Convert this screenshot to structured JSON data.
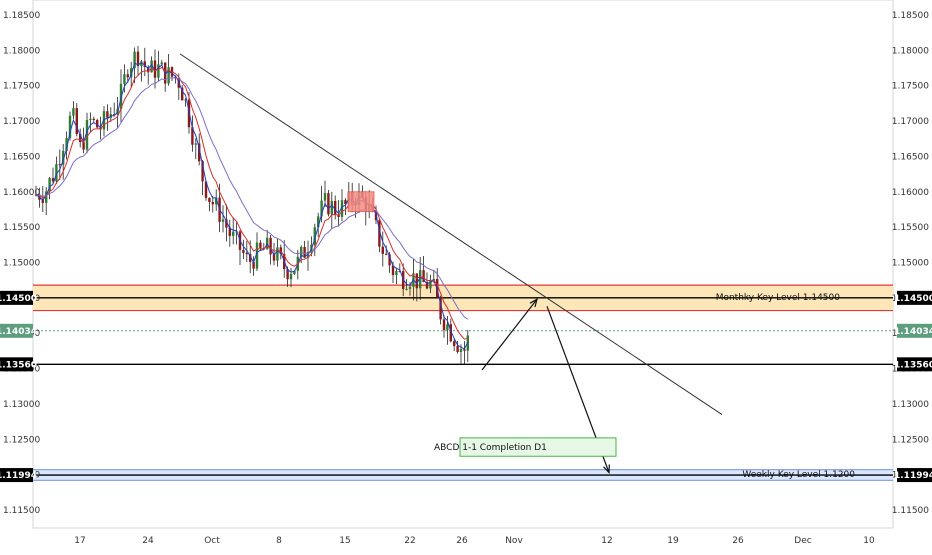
{
  "chart_data": {
    "type": "candlestick",
    "title": "",
    "ylim": [
      1.11,
      1.187
    ],
    "y_ticks": [
      "1.18500",
      "1.18000",
      "1.17500",
      "1.17000",
      "1.16500",
      "1.16000",
      "1.15500",
      "1.15000",
      "1.14500",
      "1.14000",
      "1.13500",
      "1.13000",
      "1.12500",
      "1.12000",
      "1.11500"
    ],
    "x_ticks": [
      "17",
      "24",
      "Oct",
      "8",
      "15",
      "22",
      "26",
      "Nov",
      "12",
      "19",
      "26",
      "Dec",
      "10"
    ],
    "levels": [
      {
        "label": "1.14500",
        "value": 1.145,
        "color": "#000000"
      },
      {
        "label": "1.14034",
        "value": 1.14034,
        "color": "#5e9e7e"
      },
      {
        "label": "1.13560",
        "value": 1.1356,
        "color": "#000000"
      },
      {
        "label": "1.11994",
        "value": 1.11994,
        "color": "#000000"
      }
    ],
    "zones": [
      {
        "label": "Monthky Key Level 1.14500",
        "from": 1.1432,
        "to": 1.1468,
        "fill": "#fde6b8",
        "stroke": "#e53935"
      },
      {
        "label": "Weekly Key Level 1.1200",
        "from": 1.1192,
        "to": 1.1207,
        "fill": "#dbe7ff",
        "stroke": "#7b9ae0"
      }
    ],
    "annotations": [
      {
        "label": "ABCD 1-1 Completion D1"
      }
    ],
    "colors": {
      "up": "#2e7d32",
      "down": "#8b1a1a",
      "ema_fast": "#1f3fbf",
      "ema_mid": "#d32f2f",
      "ema_slow": "#7c6fc4",
      "trend": "#333333"
    }
  }
}
